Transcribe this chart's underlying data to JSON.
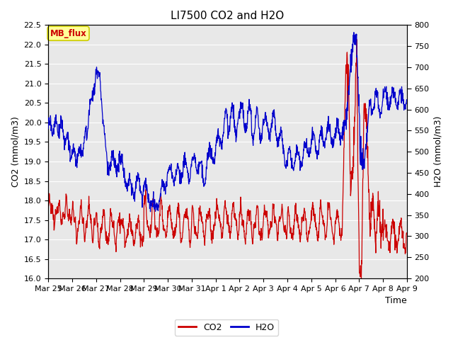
{
  "title": "LI7500 CO2 and H2O",
  "xlabel": "Time",
  "ylabel_left": "CO2 (mmol/m3)",
  "ylabel_right": "H2O (mmol/m3)",
  "ylim_left": [
    16.0,
    22.5
  ],
  "ylim_right": [
    200,
    800
  ],
  "yticks_left": [
    16.0,
    16.5,
    17.0,
    17.5,
    18.0,
    18.5,
    19.0,
    19.5,
    20.0,
    20.5,
    21.0,
    21.5,
    22.0,
    22.5
  ],
  "yticks_right": [
    200,
    250,
    300,
    350,
    400,
    450,
    500,
    550,
    600,
    650,
    700,
    750,
    800
  ],
  "xtick_labels": [
    "Mar 25",
    "Mar 26",
    "Mar 27",
    "Mar 28",
    "Mar 29",
    "Mar 30",
    "Mar 31",
    "Apr 1",
    "Apr 2",
    "Apr 3",
    "Apr 4",
    "Apr 5",
    "Apr 6",
    "Apr 7",
    "Apr 8",
    "Apr 9"
  ],
  "co2_color": "#cc0000",
  "h2o_color": "#0000cc",
  "plot_bg": "#e8e8e8",
  "fig_bg": "#ffffff",
  "grid_color": "#ffffff",
  "annotation_text": "MB_flux",
  "annotation_bg": "#ffff99",
  "annotation_border": "#cccc00",
  "legend_co2": "CO2",
  "legend_h2o": "H2O",
  "title_fontsize": 11,
  "axis_label_fontsize": 9,
  "tick_fontsize": 8,
  "legend_fontsize": 9,
  "n_days": 15,
  "pts_per_day": 96
}
